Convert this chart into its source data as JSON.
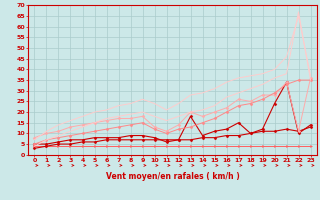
{
  "bg_color": "#cce8e8",
  "grid_color": "#aacccc",
  "axis_color": "#cc0000",
  "xlabel": "Vent moyen/en rafales ( km/h )",
  "ylabel_ticks": [
    0,
    5,
    10,
    15,
    20,
    25,
    30,
    35,
    40,
    45,
    50,
    55,
    60,
    65,
    70
  ],
  "xticks": [
    0,
    1,
    2,
    3,
    4,
    5,
    6,
    7,
    8,
    9,
    10,
    11,
    12,
    13,
    14,
    15,
    16,
    17,
    18,
    19,
    20,
    21,
    22,
    23
  ],
  "xlim": [
    -0.5,
    23.5
  ],
  "ylim": [
    0,
    70
  ],
  "series": [
    {
      "x": [
        0,
        1,
        2,
        3,
        4,
        5,
        6,
        7,
        8,
        9,
        10,
        11,
        12,
        13,
        14,
        15,
        16,
        17,
        18,
        19,
        20,
        21,
        22,
        23
      ],
      "y": [
        4,
        4,
        4,
        4,
        4,
        4,
        4,
        4,
        4,
        4,
        4,
        4,
        4,
        4,
        4,
        4,
        4,
        4,
        4,
        4,
        4,
        4,
        4,
        4
      ],
      "color": "#ff6060",
      "lw": 0.7,
      "marker": ">",
      "ms": 1.5
    },
    {
      "x": [
        0,
        1,
        2,
        3,
        4,
        5,
        6,
        7,
        8,
        9,
        10,
        11,
        12,
        13,
        14,
        15,
        16,
        17,
        18,
        19,
        20,
        21,
        22,
        23
      ],
      "y": [
        3,
        4,
        5,
        5,
        6,
        6,
        7,
        7,
        7,
        7,
        7,
        7,
        7,
        7,
        8,
        8,
        9,
        9,
        10,
        11,
        11,
        12,
        11,
        13
      ],
      "color": "#cc0000",
      "lw": 0.8,
      "marker": "D",
      "ms": 1.5
    },
    {
      "x": [
        0,
        1,
        2,
        3,
        4,
        5,
        6,
        7,
        8,
        9,
        10,
        11,
        12,
        13,
        14,
        15,
        16,
        17,
        18,
        19,
        20,
        21,
        22,
        23
      ],
      "y": [
        5,
        5,
        6,
        7,
        7,
        8,
        8,
        8,
        9,
        9,
        8,
        6,
        7,
        18,
        9,
        11,
        12,
        15,
        10,
        12,
        24,
        34,
        10,
        14
      ],
      "color": "#cc0000",
      "lw": 0.8,
      "marker": "D",
      "ms": 1.5
    },
    {
      "x": [
        0,
        1,
        2,
        3,
        4,
        5,
        6,
        7,
        8,
        9,
        10,
        11,
        12,
        13,
        14,
        15,
        16,
        17,
        18,
        19,
        20,
        21,
        22,
        23
      ],
      "y": [
        8,
        10,
        11,
        13,
        14,
        15,
        16,
        17,
        17,
        18,
        13,
        11,
        14,
        20,
        18,
        20,
        22,
        26,
        25,
        28,
        28,
        34,
        11,
        36
      ],
      "color": "#ffaaaa",
      "lw": 0.7,
      "marker": "D",
      "ms": 1.5
    },
    {
      "x": [
        0,
        1,
        2,
        3,
        4,
        5,
        6,
        7,
        8,
        9,
        10,
        11,
        12,
        13,
        14,
        15,
        16,
        17,
        18,
        19,
        20,
        21,
        22,
        23
      ],
      "y": [
        5,
        7,
        8,
        9,
        10,
        11,
        12,
        13,
        14,
        15,
        12,
        10,
        12,
        13,
        15,
        17,
        20,
        23,
        24,
        26,
        29,
        33,
        35,
        35
      ],
      "color": "#ff8888",
      "lw": 0.7,
      "marker": "D",
      "ms": 1.5
    },
    {
      "x": [
        0,
        1,
        2,
        3,
        4,
        5,
        6,
        7,
        8,
        9,
        10,
        11,
        12,
        13,
        14,
        15,
        16,
        17,
        18,
        19,
        20,
        21,
        22,
        23
      ],
      "y": [
        7,
        11,
        14,
        16,
        18,
        20,
        21,
        23,
        24,
        26,
        24,
        21,
        24,
        28,
        29,
        31,
        34,
        36,
        37,
        38,
        40,
        46,
        65,
        37
      ],
      "color": "#ffcccc",
      "lw": 0.7,
      "marker": null,
      "ms": 0
    },
    {
      "x": [
        0,
        1,
        2,
        3,
        4,
        5,
        6,
        7,
        8,
        9,
        10,
        11,
        12,
        13,
        14,
        15,
        16,
        17,
        18,
        19,
        20,
        21,
        22,
        23
      ],
      "y": [
        4,
        7,
        9,
        11,
        13,
        15,
        17,
        18,
        19,
        20,
        18,
        16,
        18,
        20,
        21,
        23,
        27,
        29,
        31,
        33,
        36,
        38,
        67,
        35
      ],
      "color": "#ffcccc",
      "lw": 0.7,
      "marker": null,
      "ms": 0
    }
  ],
  "font_color": "#cc0000"
}
